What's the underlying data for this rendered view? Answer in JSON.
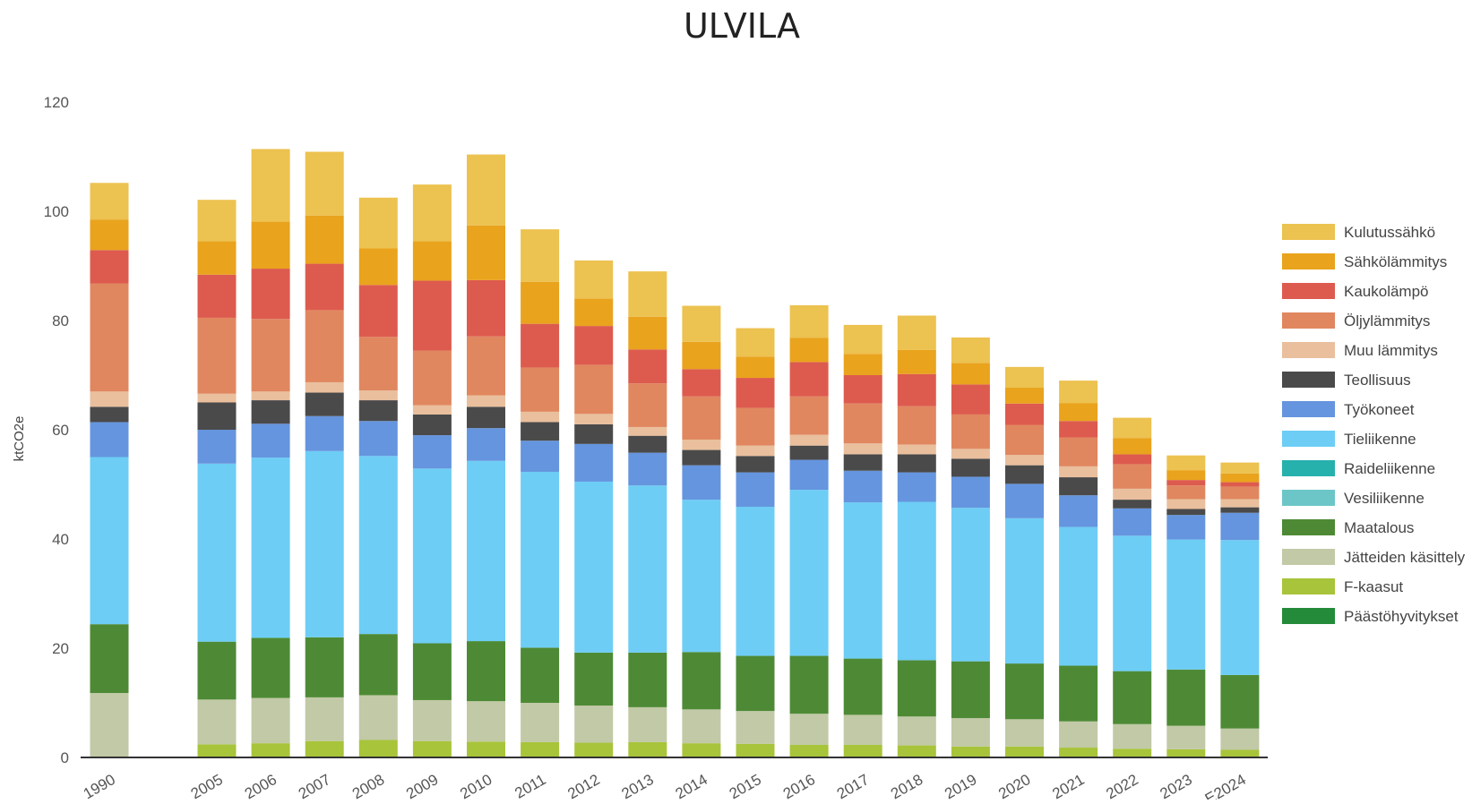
{
  "chart_data": {
    "type": "bar",
    "stacked": true,
    "title": "ULVILA",
    "ylabel": "ktCO2e",
    "ylim": [
      0,
      120
    ],
    "yticks": [
      0,
      20,
      40,
      60,
      80,
      100,
      120
    ],
    "grid": false,
    "legend_position": "right",
    "categories": [
      "1990",
      "2005",
      "2006",
      "2007",
      "2008",
      "2009",
      "2010",
      "2011",
      "2012",
      "2013",
      "2014",
      "2015",
      "2016",
      "2017",
      "2018",
      "2019",
      "2020",
      "2021",
      "2022",
      "2023",
      "E2024"
    ],
    "series": [
      {
        "name": "Päästöhyvitykset",
        "color": "#238b3a",
        "values": [
          0,
          0,
          0,
          0,
          0,
          0,
          0,
          0,
          0,
          0,
          0,
          0,
          0,
          0,
          0,
          0,
          0,
          0,
          0,
          0,
          0
        ]
      },
      {
        "name": "F-kaasut",
        "color": "#a8c43a",
        "values": [
          0,
          2.4,
          2.6,
          3.0,
          3.2,
          3.0,
          2.9,
          2.8,
          2.7,
          2.8,
          2.6,
          2.5,
          2.3,
          2.3,
          2.2,
          2.0,
          2.0,
          1.8,
          1.6,
          1.5,
          1.4
        ]
      },
      {
        "name": "Jätteiden käsittely",
        "color": "#c1c9a6",
        "values": [
          11.8,
          8.2,
          8.3,
          8.0,
          8.2,
          7.5,
          7.4,
          7.2,
          6.8,
          6.4,
          6.2,
          6.0,
          5.7,
          5.5,
          5.3,
          5.2,
          5.0,
          4.8,
          4.5,
          4.3,
          3.9
        ]
      },
      {
        "name": "Maatalous",
        "color": "#4e8a35",
        "values": [
          12.6,
          10.6,
          11.0,
          11.0,
          11.2,
          10.4,
          11.0,
          10.1,
          9.7,
          10.0,
          10.5,
          10.1,
          10.6,
          10.3,
          10.3,
          10.4,
          10.2,
          10.2,
          9.7,
          10.3,
          9.8
        ]
      },
      {
        "name": "Vesiliikenne",
        "color": "#6cc6c8",
        "values": [
          0,
          0,
          0,
          0,
          0,
          0,
          0,
          0,
          0,
          0,
          0,
          0,
          0,
          0,
          0,
          0,
          0,
          0,
          0,
          0,
          0
        ]
      },
      {
        "name": "Raideliikenne",
        "color": "#27b1ad",
        "values": [
          0,
          0,
          0,
          0,
          0,
          0,
          0,
          0,
          0,
          0,
          0,
          0,
          0,
          0,
          0,
          0,
          0,
          0,
          0,
          0,
          0
        ]
      },
      {
        "name": "Tieliikenne",
        "color": "#6dcdf5",
        "values": [
          30.6,
          32.6,
          33.0,
          34.1,
          32.6,
          32.0,
          33.0,
          32.2,
          31.3,
          30.6,
          27.9,
          27.3,
          30.4,
          28.6,
          29.0,
          28.1,
          26.6,
          25.4,
          24.8,
          23.8,
          24.7
        ]
      },
      {
        "name": "Työkoneet",
        "color": "#6595de",
        "values": [
          6.4,
          6.2,
          6.2,
          6.4,
          6.4,
          6.1,
          6.0,
          5.7,
          6.9,
          6.0,
          6.3,
          6.3,
          5.5,
          5.8,
          5.4,
          5.7,
          6.3,
          5.8,
          5.0,
          4.5,
          5.0
        ]
      },
      {
        "name": "Teollisuus",
        "color": "#4a4a4a",
        "values": [
          2.8,
          5.0,
          4.3,
          4.3,
          3.8,
          3.8,
          3.9,
          3.4,
          3.6,
          3.1,
          2.8,
          3.0,
          2.6,
          3.0,
          3.3,
          3.3,
          3.4,
          3.3,
          1.6,
          1.1,
          1.0
        ]
      },
      {
        "name": "Muu lämmitys",
        "color": "#e9bf9d",
        "values": [
          2.8,
          1.6,
          1.6,
          1.9,
          1.8,
          1.7,
          2.1,
          1.9,
          1.9,
          1.6,
          1.9,
          1.9,
          2.0,
          2.0,
          1.8,
          1.8,
          1.9,
          2.0,
          2.0,
          1.8,
          1.5
        ]
      },
      {
        "name": "Öljylämmitys",
        "color": "#e0875f",
        "values": [
          19.8,
          13.9,
          13.3,
          13.2,
          9.8,
          10.0,
          10.8,
          8.1,
          9.0,
          8.0,
          7.9,
          6.9,
          7.0,
          7.3,
          7.0,
          6.3,
          5.5,
          5.3,
          4.5,
          2.5,
          2.3
        ]
      },
      {
        "name": "Kaukolämpö",
        "color": "#dd5b4e",
        "values": [
          6.1,
          7.9,
          9.2,
          8.5,
          9.5,
          12.8,
          10.3,
          8.0,
          7.1,
          6.2,
          5.0,
          5.5,
          6.3,
          5.2,
          5.9,
          5.5,
          3.9,
          3.0,
          1.8,
          1.0,
          0.8
        ]
      },
      {
        "name": "Sähkölämmitys",
        "color": "#e9a31d",
        "values": [
          5.6,
          6.1,
          8.6,
          8.8,
          6.7,
          7.2,
          10.0,
          7.7,
          5.0,
          6.0,
          5.0,
          3.9,
          4.4,
          3.9,
          4.4,
          3.9,
          2.9,
          3.3,
          3.0,
          1.8,
          1.6
        ]
      },
      {
        "name": "Kulutussähkö",
        "color": "#ecc250",
        "values": [
          6.7,
          7.6,
          13.3,
          11.7,
          9.3,
          10.4,
          13.0,
          9.6,
          7.0,
          8.3,
          6.6,
          5.2,
          6.0,
          5.3,
          6.3,
          4.7,
          3.8,
          4.1,
          3.7,
          2.7,
          2.0
        ]
      }
    ]
  }
}
